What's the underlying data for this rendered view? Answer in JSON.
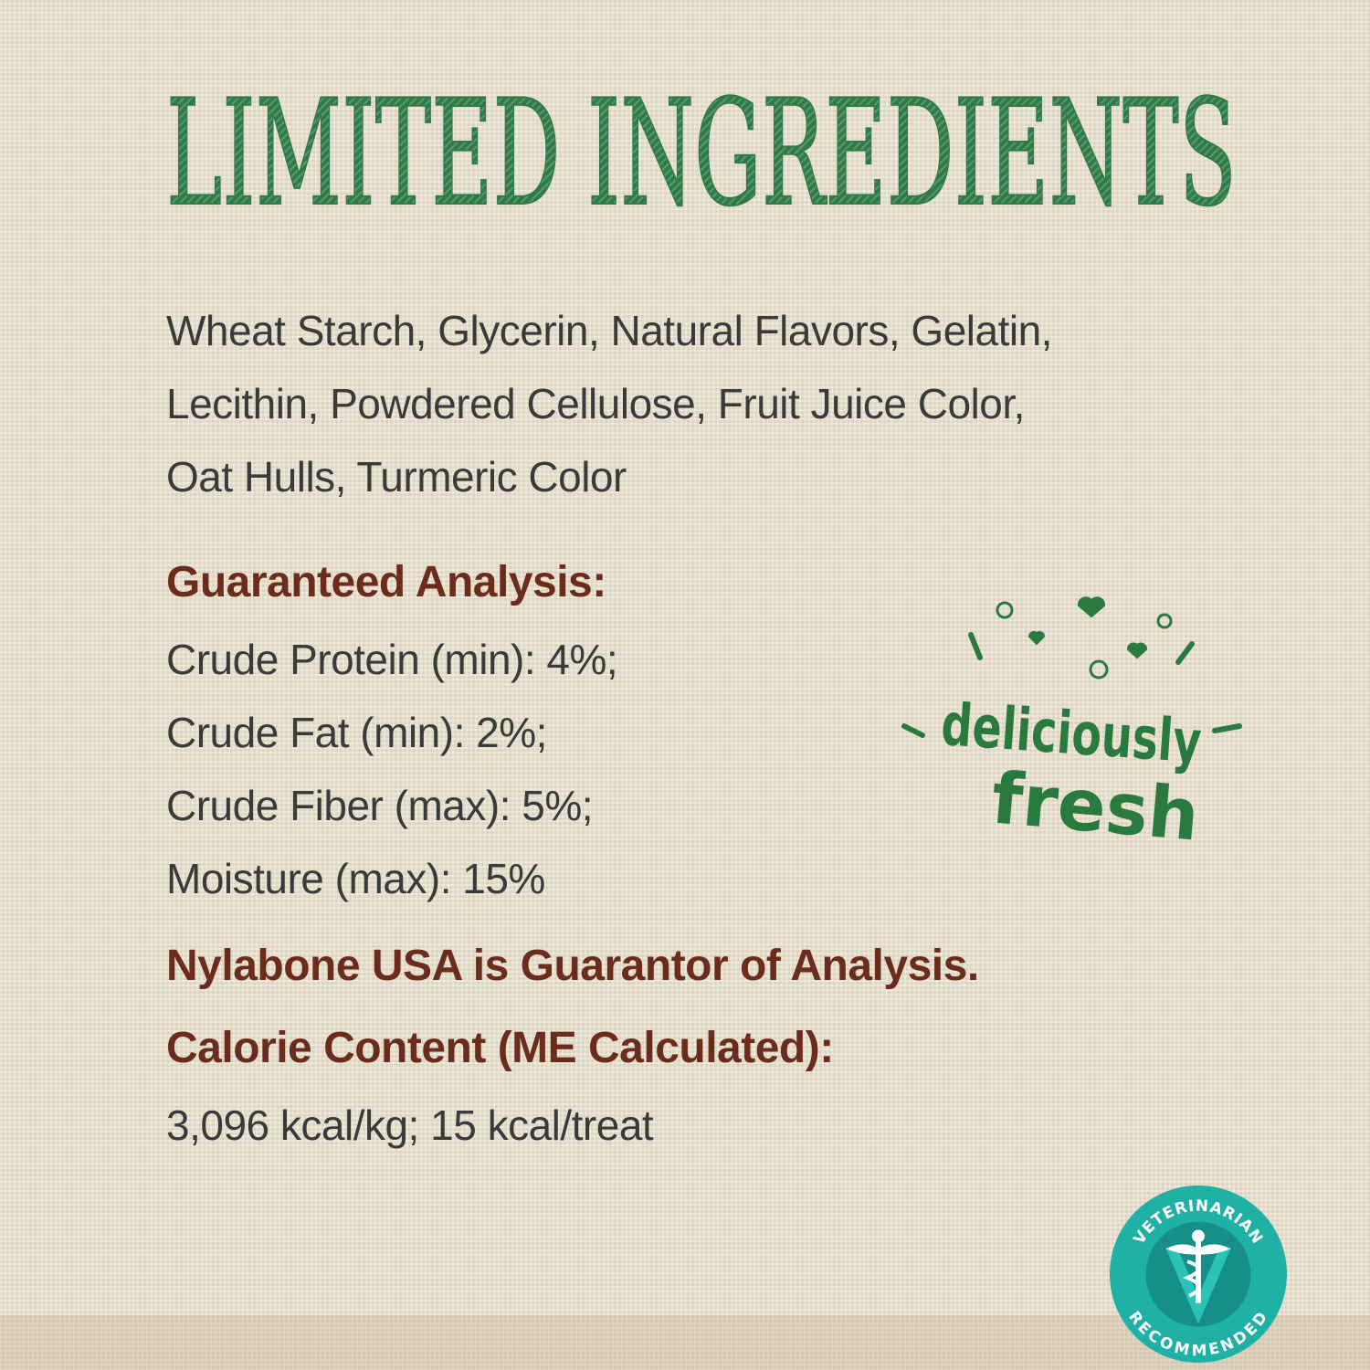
{
  "title": "LIMITED INGREDIENTS",
  "ingredients": [
    "Wheat Starch, Glycerin, Natural Flavors, Gelatin,",
    "Lecithin, Powdered Cellulose, Fruit Juice Color,",
    "Oat Hulls, Turmeric Color"
  ],
  "analysis": {
    "heading": "Guaranteed Analysis:",
    "items": [
      "Crude Protein (min): 4%;",
      "Crude Fat (min): 2%;",
      "Crude Fiber (max): 5%;",
      "Moisture (max): 15%"
    ]
  },
  "guarantor": "Nylabone USA is Guarantor of Analysis.",
  "calorie": {
    "heading": "Calorie Content (ME Calculated):",
    "value": "3,096 kcal/kg; 15 kcal/treat"
  },
  "logo": {
    "line1": "deliciously",
    "line2": "fresh"
  },
  "badge": {
    "top": "VETERINARIAN",
    "bottom": "RECOMMENDED",
    "icon": "caduceus-icon",
    "color": "#1fb0a6"
  },
  "colors": {
    "title": "#2f7a47",
    "heading": "#6b2c1c",
    "body": "#3a3a3a"
  }
}
